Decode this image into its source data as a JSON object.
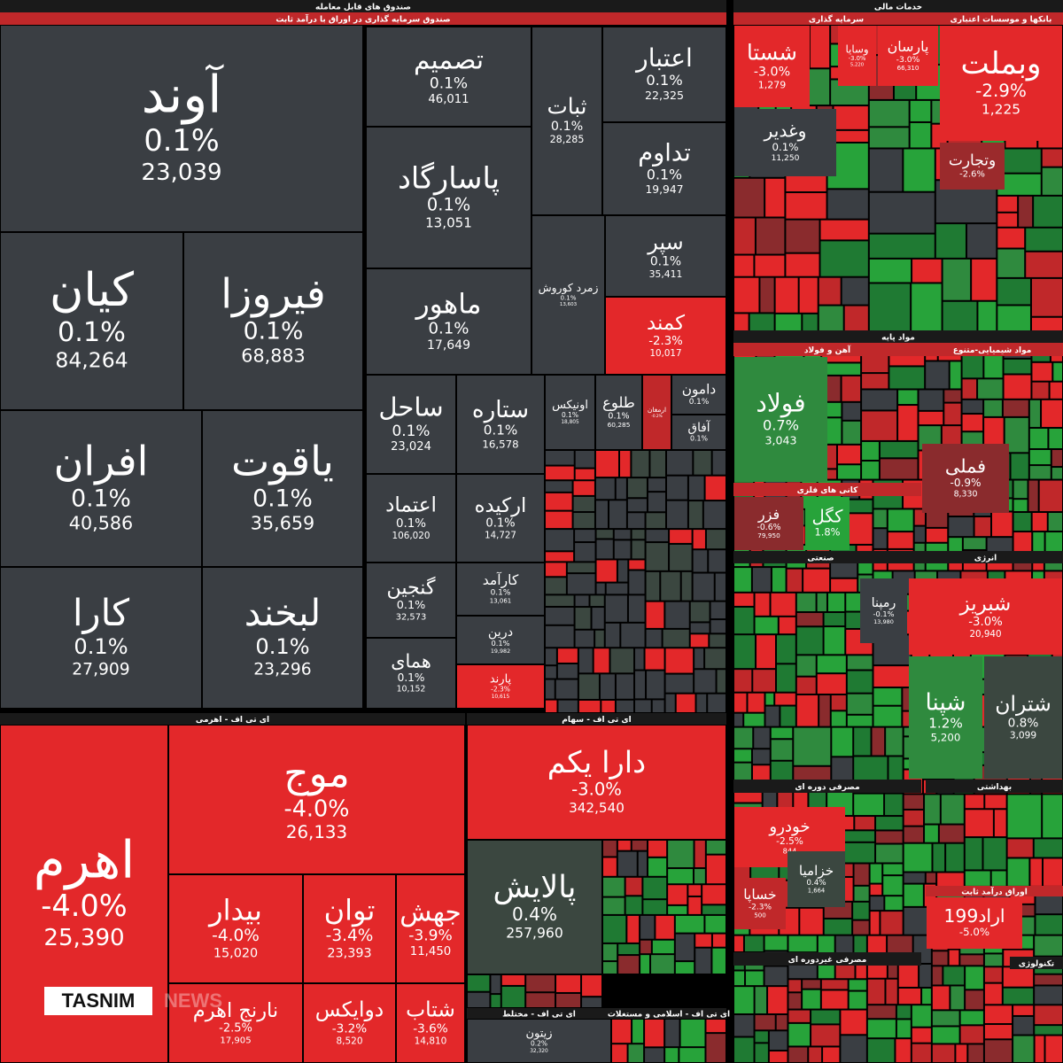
{
  "headers": [
    "صندوق های قابل معامله",
    "صندوق سرمایه گذاری در اوراق با درآمد ثابت",
    "ای تی اف - اهرمی",
    "ای تی اف - سهام",
    "ای تی اف - مختلط",
    "ای تی اف - اسلامی و مستغلات",
    "خدمات مالی",
    "سرمایه گذاری",
    "بانکها و موسسات اعتباری",
    "مواد پایه",
    "آهن و فولاد",
    "مواد شیمیایی-متنوع",
    "کانی های فلزی",
    "صنعتی",
    "انرژی",
    "مصرفی دوره ای",
    "بهداشتی",
    "مصرفی غیردوره ای",
    "اوراق درآمد ثابت",
    "تکنولوژی"
  ],
  "tiles": [
    {
      "name": "آوند",
      "change": "0.1%",
      "value": "23,039",
      "color": "#3a3e43"
    },
    {
      "name": "کیان",
      "change": "0.1%",
      "value": "84,264",
      "color": "#3a3e43"
    },
    {
      "name": "فیروزا",
      "change": "0.1%",
      "value": "68,883",
      "color": "#3a3e43"
    },
    {
      "name": "افران",
      "change": "0.1%",
      "value": "40,586",
      "color": "#3a3e43"
    },
    {
      "name": "یاقوت",
      "change": "0.1%",
      "value": "35,659",
      "color": "#3a3e43"
    },
    {
      "name": "کارا",
      "change": "0.1%",
      "value": "27,909",
      "color": "#3a3e43"
    },
    {
      "name": "لبخند",
      "change": "0.1%",
      "value": "23,296",
      "color": "#3a3e43"
    },
    {
      "name": "تصمیم",
      "change": "0.1%",
      "value": "46,011",
      "color": "#3a3e43"
    },
    {
      "name": "پاسارگاد",
      "change": "0.1%",
      "value": "13,051",
      "color": "#3a3e43"
    },
    {
      "name": "ماهور",
      "change": "0.1%",
      "value": "17,649",
      "color": "#3a3e43"
    },
    {
      "name": "ثبات",
      "change": "0.1%",
      "value": "28,285",
      "color": "#3a3e43"
    },
    {
      "name": "اعتبار",
      "change": "0.1%",
      "value": "22,325",
      "color": "#3a3e43"
    },
    {
      "name": "تداوم",
      "change": "0.1%",
      "value": "19,947",
      "color": "#3a3e43"
    },
    {
      "name": "زمرد کوروش",
      "change": "0.1%",
      "value": "13,603",
      "color": "#3a3e43"
    },
    {
      "name": "سپر",
      "change": "0.1%",
      "value": "35,411",
      "color": "#3a3e43"
    },
    {
      "name": "کمند",
      "change": "-2.3%",
      "value": "10,017",
      "color": "#e3282a"
    },
    {
      "name": "ساحل",
      "change": "0.1%",
      "value": "23,024",
      "color": "#3a3e43"
    },
    {
      "name": "ستاره",
      "change": "0.1%",
      "value": "16,578",
      "color": "#3a3e43"
    },
    {
      "name": "اعتماد",
      "change": "0.1%",
      "value": "106,020",
      "color": "#3a3e43"
    },
    {
      "name": "ارکیده",
      "change": "0.1%",
      "value": "14,727",
      "color": "#3a3e43"
    },
    {
      "name": "گنجین",
      "change": "0.1%",
      "value": "32,573",
      "color": "#3a3e43"
    },
    {
      "name": "کارآمد",
      "change": "0.1%",
      "value": "13,061",
      "color": "#3a3e43"
    },
    {
      "name": "همای",
      "change": "0.1%",
      "value": "10,152",
      "color": "#3a3e43"
    },
    {
      "name": "درین",
      "change": "0.1%",
      "value": "19,982",
      "color": "#3a3e43"
    },
    {
      "name": "پارند",
      "change": "-2.3%",
      "value": "10,615",
      "color": "#e3282a"
    },
    {
      "name": "اونیکس",
      "change": "0.1%",
      "value": "18,805",
      "color": "#3a3e43"
    },
    {
      "name": "طلوع",
      "change": "0.1%",
      "value": "60,285",
      "color": "#3a3e43"
    },
    {
      "name": "ارمغان",
      "change": "-0.2%",
      "color": "#c0282a"
    },
    {
      "name": "دامون",
      "change": "0.1%",
      "color": "#3a3e43"
    },
    {
      "name": "آفاق",
      "change": "0.1%",
      "color": "#3a3e43"
    },
    {
      "name": "اهرم",
      "change": "-4.0%",
      "value": "25,390",
      "color": "#e3282a"
    },
    {
      "name": "موج",
      "change": "-4.0%",
      "value": "26,133",
      "color": "#e3282a"
    },
    {
      "name": "بیدار",
      "change": "-4.0%",
      "value": "15,020",
      "color": "#e3282a"
    },
    {
      "name": "توان",
      "change": "-3.4%",
      "value": "23,393",
      "color": "#e3282a"
    },
    {
      "name": "جهش",
      "change": "-3.9%",
      "value": "11,450",
      "color": "#e3282a"
    },
    {
      "name": "نارنج اهرم",
      "change": "-2.5%",
      "value": "17,905",
      "color": "#e3282a"
    },
    {
      "name": "دوایکس",
      "change": "-3.2%",
      "value": "8,520",
      "color": "#e3282a"
    },
    {
      "name": "شتاب",
      "change": "-3.6%",
      "value": "14,810",
      "color": "#e3282a"
    },
    {
      "name": "دارا یکم",
      "change": "-3.0%",
      "value": "342,540",
      "color": "#e3282a"
    },
    {
      "name": "پالایش",
      "change": "0.4%",
      "value": "257,960",
      "color": "#3b4740"
    },
    {
      "name": "زیتون",
      "change": "0.2%",
      "value": "32,320",
      "color": "#3a3e43"
    },
    {
      "name": "شستا",
      "change": "-3.0%",
      "value": "1,279",
      "color": "#e3282a"
    },
    {
      "name": "وسایا",
      "change": "-3.0%",
      "value": "5,220",
      "color": "#e3282a"
    },
    {
      "name": "پارسان",
      "change": "-3.0%",
      "value": "66,310",
      "color": "#e3282a"
    },
    {
      "name": "وغدیر",
      "change": "0.1%",
      "value": "11,250",
      "color": "#3a3e43"
    },
    {
      "name": "وبملت",
      "change": "-2.9%",
      "value": "1,225",
      "color": "#e3282a"
    },
    {
      "name": "وتجارت",
      "change": "-2.6%",
      "color": "#9b2a2c"
    },
    {
      "name": "فولاد",
      "change": "0.7%",
      "value": "3,043",
      "color": "#2f8a3e"
    },
    {
      "name": "فملی",
      "change": "-0.9%",
      "value": "8,330",
      "color": "#8a2b2d"
    },
    {
      "name": "فزر",
      "change": "-0.6%",
      "value": "79,950",
      "color": "#8a2b2d"
    },
    {
      "name": "کگل",
      "change": "1.8%",
      "color": "#27a33a"
    },
    {
      "name": "شبریز",
      "change": "-3.0%",
      "value": "20,940",
      "color": "#e3282a"
    },
    {
      "name": "شپنا",
      "change": "1.2%",
      "value": "5,200",
      "color": "#2f8a3e"
    },
    {
      "name": "شتران",
      "change": "0.8%",
      "value": "3,099",
      "color": "#3b4740"
    },
    {
      "name": "رمپنا",
      "change": "-0.1%",
      "value": "13,980",
      "color": "#3a3e43"
    },
    {
      "name": "خودرو",
      "change": "-2.5%",
      "value": "844",
      "color": "#e3282a"
    },
    {
      "name": "خساپا",
      "change": "-2.3%",
      "value": "500",
      "color": "#c0282a"
    },
    {
      "name": "خزامیا",
      "change": "0.4%",
      "value": "1,664",
      "color": "#3b4740"
    },
    {
      "name": "اراد199",
      "change": "-5.0%",
      "color": "#e3282a"
    }
  ],
  "logo": {
    "brand": "TASNIM",
    "suffix": "NEWS"
  }
}
